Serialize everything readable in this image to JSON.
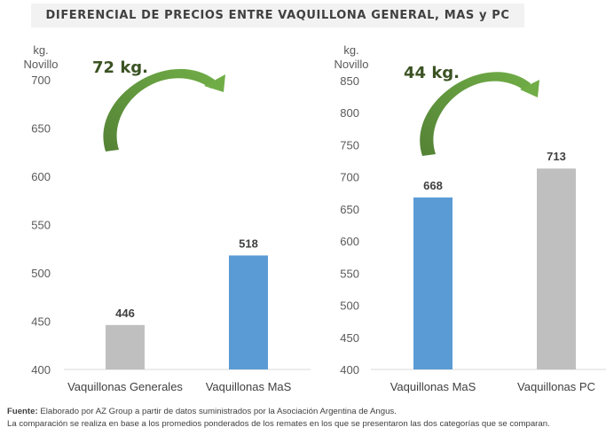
{
  "title": "DIFERENCIAL DE PRECIOS ENTRE VAQUILLONA GENERAL, MAS y PC",
  "colors": {
    "gray_bar": "#bfbfbf",
    "blue_bar": "#5b9bd5",
    "arrow_light": "#70ad47",
    "arrow_dark": "#548235",
    "axis": "#d9d9d9"
  },
  "chart_data": [
    {
      "type": "bar",
      "title": "",
      "ylabel": "kg. Novillo",
      "ylabel_lines": [
        "kg.",
        "Novillo"
      ],
      "xlabel": "",
      "categories": [
        "Vaquillonas Generales",
        "Vaquillonas MaS"
      ],
      "values": [
        446,
        518
      ],
      "data_labels": [
        "446",
        "518"
      ],
      "bar_colors": [
        "gray",
        "blue"
      ],
      "ylim": [
        400,
        700
      ],
      "yticks": [
        400,
        450,
        500,
        550,
        600,
        650,
        700
      ],
      "grid": false,
      "annotation": "72 kg."
    },
    {
      "type": "bar",
      "title": "",
      "ylabel": "kg. Novillo",
      "ylabel_lines": [
        "kg.",
        "Novillo"
      ],
      "xlabel": "",
      "categories": [
        "Vaquillonas MaS",
        "Vaquillonas PC"
      ],
      "values": [
        668,
        713
      ],
      "data_labels": [
        "668",
        "713"
      ],
      "bar_colors": [
        "blue",
        "gray"
      ],
      "ylim": [
        400,
        850
      ],
      "yticks": [
        400,
        450,
        500,
        550,
        600,
        650,
        700,
        750,
        800,
        850
      ],
      "grid": false,
      "annotation": "44 kg."
    }
  ],
  "footer": {
    "source_label": "Fuente:",
    "source_text": " Elaborado por AZ Group a partir de datos suministrados por la Asociación Argentina de Angus.",
    "note": "La comparación se realiza en base a los promedios ponderados de los remates en los que se presentaron las dos categorías que se comparan."
  }
}
